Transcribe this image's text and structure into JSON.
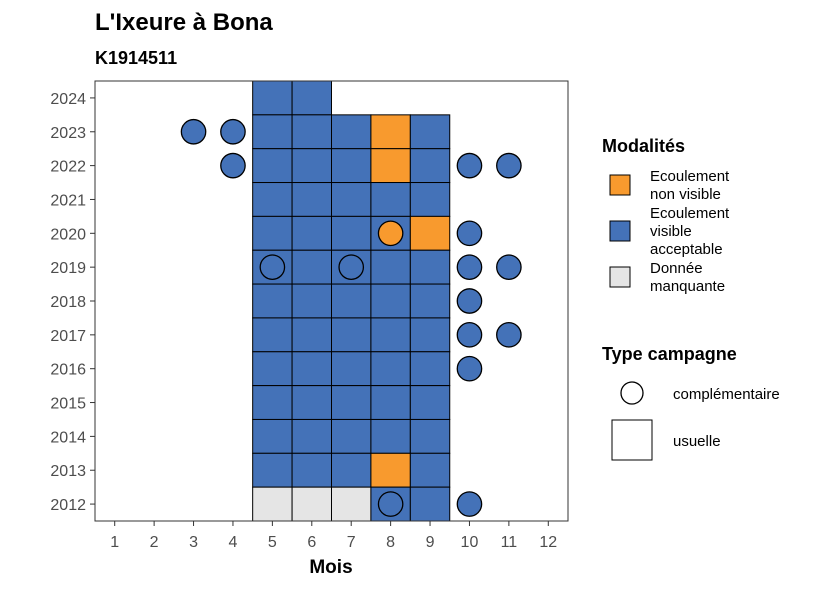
{
  "chart_data": {
    "type": "heatmap",
    "title": "L'Ixeure à Bona",
    "subtitle": "K1914511",
    "xlabel": "Mois",
    "ylabel": "",
    "x_ticks": [
      1,
      2,
      3,
      4,
      5,
      6,
      7,
      8,
      9,
      10,
      11,
      12
    ],
    "y_ticks": [
      2012,
      2013,
      2014,
      2015,
      2016,
      2017,
      2018,
      2019,
      2020,
      2021,
      2022,
      2023,
      2024
    ],
    "xlim": [
      0.5,
      12.5
    ],
    "ylim": [
      2011.5,
      2024.5
    ],
    "grid": false,
    "legend_placement": "right",
    "colors": {
      "ecoulement_non_visible": "#f89a2e",
      "ecoulement_visible_acceptable": "#4472b8",
      "donnee_manquante": "#e5e5e5"
    },
    "legend_modalites": {
      "title": "Modalités",
      "entries": [
        {
          "key": "ecoulement_non_visible",
          "label_lines": [
            "Ecoulement",
            "non visible"
          ]
        },
        {
          "key": "ecoulement_visible_acceptable",
          "label_lines": [
            "Ecoulement",
            "visible",
            "acceptable"
          ]
        },
        {
          "key": "donnee_manquante",
          "label_lines": [
            "Donnée",
            "manquante"
          ]
        }
      ]
    },
    "legend_campagne": {
      "title": "Type campagne",
      "entries": [
        {
          "shape": "circle",
          "label": "complémentaire"
        },
        {
          "shape": "square",
          "label": "usuelle"
        }
      ]
    },
    "tiles": [
      {
        "year": 2024,
        "month": 5,
        "modalite": "ecoulement_visible_acceptable"
      },
      {
        "year": 2024,
        "month": 6,
        "modalite": "ecoulement_visible_acceptable"
      },
      {
        "year": 2023,
        "month": 5,
        "modalite": "ecoulement_visible_acceptable"
      },
      {
        "year": 2023,
        "month": 6,
        "modalite": "ecoulement_visible_acceptable"
      },
      {
        "year": 2023,
        "month": 7,
        "modalite": "ecoulement_visible_acceptable"
      },
      {
        "year": 2023,
        "month": 8,
        "modalite": "ecoulement_non_visible"
      },
      {
        "year": 2023,
        "month": 9,
        "modalite": "ecoulement_visible_acceptable"
      },
      {
        "year": 2022,
        "month": 5,
        "modalite": "ecoulement_visible_acceptable"
      },
      {
        "year": 2022,
        "month": 6,
        "modalite": "ecoulement_visible_acceptable"
      },
      {
        "year": 2022,
        "month": 7,
        "modalite": "ecoulement_visible_acceptable"
      },
      {
        "year": 2022,
        "month": 8,
        "modalite": "ecoulement_non_visible"
      },
      {
        "year": 2022,
        "month": 9,
        "modalite": "ecoulement_visible_acceptable"
      },
      {
        "year": 2021,
        "month": 5,
        "modalite": "ecoulement_visible_acceptable"
      },
      {
        "year": 2021,
        "month": 6,
        "modalite": "ecoulement_visible_acceptable"
      },
      {
        "year": 2021,
        "month": 7,
        "modalite": "ecoulement_visible_acceptable"
      },
      {
        "year": 2021,
        "month": 8,
        "modalite": "ecoulement_visible_acceptable"
      },
      {
        "year": 2021,
        "month": 9,
        "modalite": "ecoulement_visible_acceptable"
      },
      {
        "year": 2020,
        "month": 5,
        "modalite": "ecoulement_visible_acceptable"
      },
      {
        "year": 2020,
        "month": 6,
        "modalite": "ecoulement_visible_acceptable"
      },
      {
        "year": 2020,
        "month": 7,
        "modalite": "ecoulement_visible_acceptable"
      },
      {
        "year": 2020,
        "month": 8,
        "modalite": "ecoulement_visible_acceptable"
      },
      {
        "year": 2020,
        "month": 9,
        "modalite": "ecoulement_non_visible"
      },
      {
        "year": 2019,
        "month": 5,
        "modalite": "ecoulement_visible_acceptable"
      },
      {
        "year": 2019,
        "month": 6,
        "modalite": "ecoulement_visible_acceptable"
      },
      {
        "year": 2019,
        "month": 7,
        "modalite": "ecoulement_visible_acceptable"
      },
      {
        "year": 2019,
        "month": 8,
        "modalite": "ecoulement_visible_acceptable"
      },
      {
        "year": 2019,
        "month": 9,
        "modalite": "ecoulement_visible_acceptable"
      },
      {
        "year": 2018,
        "month": 5,
        "modalite": "ecoulement_visible_acceptable"
      },
      {
        "year": 2018,
        "month": 6,
        "modalite": "ecoulement_visible_acceptable"
      },
      {
        "year": 2018,
        "month": 7,
        "modalite": "ecoulement_visible_acceptable"
      },
      {
        "year": 2018,
        "month": 8,
        "modalite": "ecoulement_visible_acceptable"
      },
      {
        "year": 2018,
        "month": 9,
        "modalite": "ecoulement_visible_acceptable"
      },
      {
        "year": 2017,
        "month": 5,
        "modalite": "ecoulement_visible_acceptable"
      },
      {
        "year": 2017,
        "month": 6,
        "modalite": "ecoulement_visible_acceptable"
      },
      {
        "year": 2017,
        "month": 7,
        "modalite": "ecoulement_visible_acceptable"
      },
      {
        "year": 2017,
        "month": 8,
        "modalite": "ecoulement_visible_acceptable"
      },
      {
        "year": 2017,
        "month": 9,
        "modalite": "ecoulement_visible_acceptable"
      },
      {
        "year": 2016,
        "month": 5,
        "modalite": "ecoulement_visible_acceptable"
      },
      {
        "year": 2016,
        "month": 6,
        "modalite": "ecoulement_visible_acceptable"
      },
      {
        "year": 2016,
        "month": 7,
        "modalite": "ecoulement_visible_acceptable"
      },
      {
        "year": 2016,
        "month": 8,
        "modalite": "ecoulement_visible_acceptable"
      },
      {
        "year": 2016,
        "month": 9,
        "modalite": "ecoulement_visible_acceptable"
      },
      {
        "year": 2015,
        "month": 5,
        "modalite": "ecoulement_visible_acceptable"
      },
      {
        "year": 2015,
        "month": 6,
        "modalite": "ecoulement_visible_acceptable"
      },
      {
        "year": 2015,
        "month": 7,
        "modalite": "ecoulement_visible_acceptable"
      },
      {
        "year": 2015,
        "month": 8,
        "modalite": "ecoulement_visible_acceptable"
      },
      {
        "year": 2015,
        "month": 9,
        "modalite": "ecoulement_visible_acceptable"
      },
      {
        "year": 2014,
        "month": 5,
        "modalite": "ecoulement_visible_acceptable"
      },
      {
        "year": 2014,
        "month": 6,
        "modalite": "ecoulement_visible_acceptable"
      },
      {
        "year": 2014,
        "month": 7,
        "modalite": "ecoulement_visible_acceptable"
      },
      {
        "year": 2014,
        "month": 8,
        "modalite": "ecoulement_visible_acceptable"
      },
      {
        "year": 2014,
        "month": 9,
        "modalite": "ecoulement_visible_acceptable"
      },
      {
        "year": 2013,
        "month": 5,
        "modalite": "ecoulement_visible_acceptable"
      },
      {
        "year": 2013,
        "month": 6,
        "modalite": "ecoulement_visible_acceptable"
      },
      {
        "year": 2013,
        "month": 7,
        "modalite": "ecoulement_visible_acceptable"
      },
      {
        "year": 2013,
        "month": 8,
        "modalite": "ecoulement_non_visible"
      },
      {
        "year": 2013,
        "month": 9,
        "modalite": "ecoulement_visible_acceptable"
      },
      {
        "year": 2012,
        "month": 5,
        "modalite": "donnee_manquante"
      },
      {
        "year": 2012,
        "month": 6,
        "modalite": "donnee_manquante"
      },
      {
        "year": 2012,
        "month": 7,
        "modalite": "donnee_manquante"
      },
      {
        "year": 2012,
        "month": 8,
        "modalite": "ecoulement_visible_acceptable"
      },
      {
        "year": 2012,
        "month": 9,
        "modalite": "ecoulement_visible_acceptable"
      }
    ],
    "points": [
      {
        "year": 2023,
        "month": 3,
        "modalite": "ecoulement_visible_acceptable"
      },
      {
        "year": 2023,
        "month": 4,
        "modalite": "ecoulement_visible_acceptable"
      },
      {
        "year": 2022,
        "month": 4,
        "modalite": "ecoulement_visible_acceptable"
      },
      {
        "year": 2022,
        "month": 10,
        "modalite": "ecoulement_visible_acceptable"
      },
      {
        "year": 2022,
        "month": 11,
        "modalite": "ecoulement_visible_acceptable"
      },
      {
        "year": 2020,
        "month": 8,
        "modalite": "ecoulement_non_visible"
      },
      {
        "year": 2020,
        "month": 10,
        "modalite": "ecoulement_visible_acceptable"
      },
      {
        "year": 2019,
        "month": 5,
        "modalite": "ecoulement_visible_acceptable"
      },
      {
        "year": 2019,
        "month": 7,
        "modalite": "ecoulement_visible_acceptable"
      },
      {
        "year": 2019,
        "month": 10,
        "modalite": "ecoulement_visible_acceptable"
      },
      {
        "year": 2019,
        "month": 11,
        "modalite": "ecoulement_visible_acceptable"
      },
      {
        "year": 2018,
        "month": 10,
        "modalite": "ecoulement_visible_acceptable"
      },
      {
        "year": 2017,
        "month": 10,
        "modalite": "ecoulement_visible_acceptable"
      },
      {
        "year": 2017,
        "month": 11,
        "modalite": "ecoulement_visible_acceptable"
      },
      {
        "year": 2016,
        "month": 10,
        "modalite": "ecoulement_visible_acceptable"
      },
      {
        "year": 2012,
        "month": 8,
        "modalite": "ecoulement_visible_acceptable"
      },
      {
        "year": 2012,
        "month": 10,
        "modalite": "ecoulement_visible_acceptable"
      }
    ]
  }
}
